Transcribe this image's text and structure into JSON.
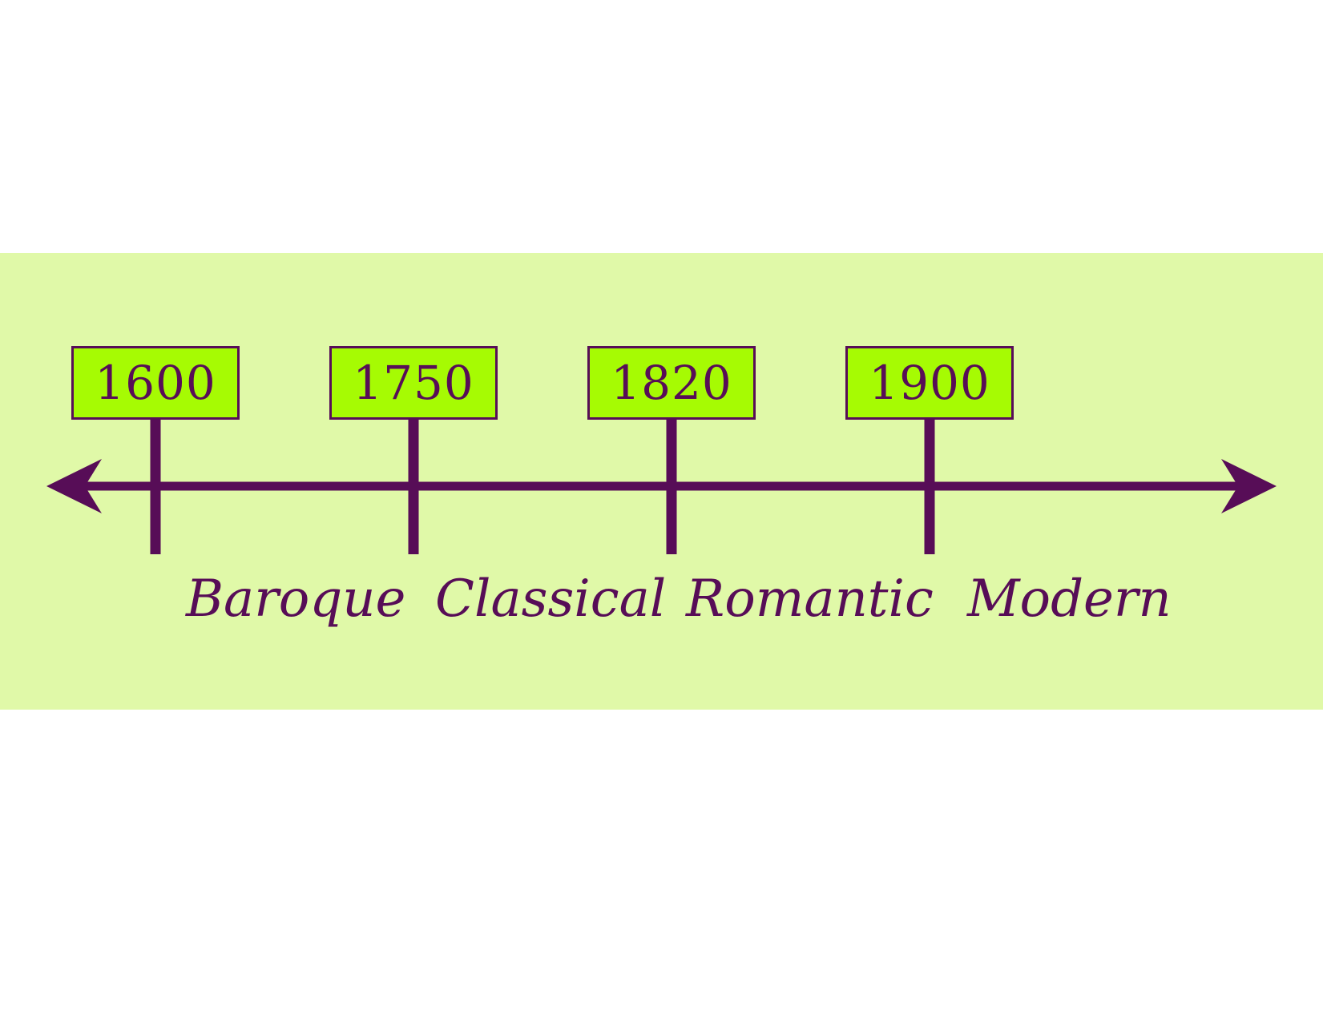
{
  "colors": {
    "band": "#e0f9a8",
    "box_fill": "#a6fb03",
    "ink": "#570d57",
    "page": "#ffffff"
  },
  "timeline": {
    "years": [
      {
        "label": "1600",
        "value": 1600
      },
      {
        "label": "1750",
        "value": 1750
      },
      {
        "label": "1820",
        "value": 1820
      },
      {
        "label": "1900",
        "value": 1900
      }
    ],
    "eras": [
      {
        "label": "Baroque"
      },
      {
        "label": "Classical"
      },
      {
        "label": "Romantic"
      },
      {
        "label": "Modern"
      }
    ]
  }
}
